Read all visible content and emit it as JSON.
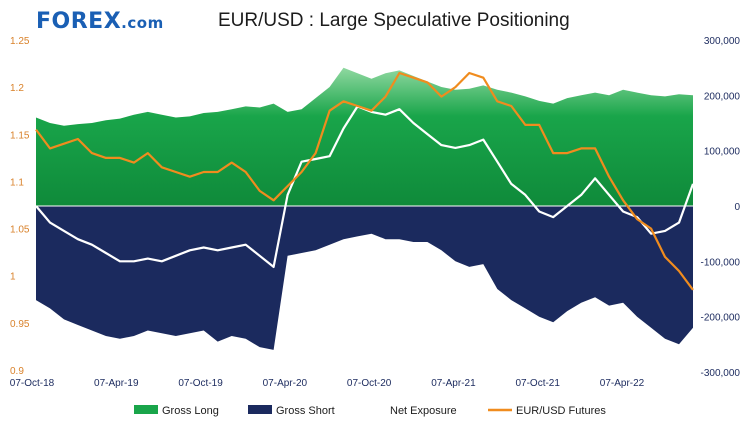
{
  "logo": {
    "text": "FOREX",
    "domain": ".com",
    "color": "#1a5fb4",
    "accent": "#2db34a"
  },
  "title": "EUR/USD : Large Speculative Positioning",
  "colors": {
    "gross_long": "#19a54a",
    "gross_short": "#1b2a5e",
    "net_exposure": "#ffffff",
    "futures": "#f08c1e",
    "left_axis": "#d9822b",
    "right_axis": "#1b2a5e"
  },
  "chart_data": {
    "type": "area",
    "title": "EUR/USD : Large Speculative Positioning",
    "x_ticks": [
      "07-Oct-18",
      "07-Apr-19",
      "07-Oct-19",
      "07-Apr-20",
      "07-Oct-20",
      "07-Apr-21",
      "07-Oct-21",
      "07-Apr-22"
    ],
    "x": [
      "2018-10",
      "2018-11",
      "2018-12",
      "2019-01",
      "2019-02",
      "2019-03",
      "2019-04",
      "2019-05",
      "2019-06",
      "2019-07",
      "2019-08",
      "2019-09",
      "2019-10",
      "2019-11",
      "2019-12",
      "2020-01",
      "2020-02",
      "2020-03",
      "2020-04",
      "2020-05",
      "2020-06",
      "2020-07",
      "2020-08",
      "2020-09",
      "2020-10",
      "2020-11",
      "2020-12",
      "2021-01",
      "2021-02",
      "2021-03",
      "2021-04",
      "2021-05",
      "2021-06",
      "2021-07",
      "2021-08",
      "2021-09",
      "2021-10",
      "2021-11",
      "2021-12",
      "2022-01",
      "2022-02",
      "2022-03",
      "2022-04",
      "2022-05",
      "2022-06",
      "2022-07",
      "2022-08",
      "2022-09"
    ],
    "y_left": {
      "ticks": [
        "1.25",
        "1.2",
        "1.15",
        "1.1",
        "1.05",
        "1",
        "0.95",
        "0.9"
      ],
      "range": [
        0.9,
        1.25
      ]
    },
    "y_right": {
      "ticks": [
        "300,000",
        "200,000",
        "100,000",
        "0",
        "-100,000",
        "-200,000",
        "-300,000"
      ],
      "range": [
        -300000,
        300000
      ]
    },
    "series": [
      {
        "name": "Gross Long",
        "axis": "right",
        "values": [
          160000,
          150000,
          145000,
          148000,
          150000,
          155000,
          158000,
          165000,
          170000,
          165000,
          160000,
          162000,
          168000,
          170000,
          175000,
          180000,
          178000,
          185000,
          170000,
          175000,
          195000,
          215000,
          250000,
          240000,
          230000,
          240000,
          245000,
          235000,
          225000,
          215000,
          210000,
          212000,
          218000,
          210000,
          205000,
          198000,
          190000,
          185000,
          195000,
          200000,
          205000,
          200000,
          210000,
          205000,
          200000,
          198000,
          202000,
          200000
        ]
      },
      {
        "name": "Gross Short",
        "axis": "right",
        "values": [
          -170000,
          -185000,
          -205000,
          -215000,
          -225000,
          -235000,
          -240000,
          -235000,
          -225000,
          -230000,
          -235000,
          -230000,
          -225000,
          -245000,
          -235000,
          -240000,
          -255000,
          -260000,
          -90000,
          -85000,
          -80000,
          -70000,
          -60000,
          -55000,
          -50000,
          -60000,
          -60000,
          -65000,
          -65000,
          -80000,
          -100000,
          -110000,
          -105000,
          -150000,
          -170000,
          -185000,
          -200000,
          -210000,
          -190000,
          -175000,
          -165000,
          -180000,
          -175000,
          -200000,
          -220000,
          -240000,
          -250000,
          -220000
        ]
      },
      {
        "name": "Net Exposure",
        "axis": "right",
        "values": [
          0,
          -30000,
          -45000,
          -60000,
          -70000,
          -85000,
          -100000,
          -100000,
          -95000,
          -100000,
          -90000,
          -80000,
          -75000,
          -80000,
          -75000,
          -70000,
          -90000,
          -110000,
          20000,
          80000,
          85000,
          90000,
          140000,
          180000,
          170000,
          165000,
          175000,
          150000,
          130000,
          110000,
          105000,
          110000,
          120000,
          80000,
          40000,
          20000,
          -10000,
          -20000,
          0,
          20000,
          50000,
          20000,
          -10000,
          -20000,
          -50000,
          -45000,
          -30000,
          40000
        ]
      },
      {
        "name": "EUR/USD Futures",
        "axis": "left",
        "values": [
          1.155,
          1.135,
          1.14,
          1.145,
          1.13,
          1.125,
          1.125,
          1.12,
          1.13,
          1.115,
          1.11,
          1.105,
          1.11,
          1.11,
          1.12,
          1.11,
          1.09,
          1.08,
          1.095,
          1.11,
          1.13,
          1.175,
          1.185,
          1.18,
          1.175,
          1.19,
          1.215,
          1.21,
          1.205,
          1.19,
          1.2,
          1.215,
          1.21,
          1.185,
          1.18,
          1.16,
          1.16,
          1.13,
          1.13,
          1.135,
          1.135,
          1.105,
          1.08,
          1.06,
          1.05,
          1.02,
          1.005,
          0.985
        ]
      }
    ],
    "legend": [
      "Gross Long",
      "Gross Short",
      "Net Exposure",
      "EUR/USD Futures"
    ],
    "legend_position": "bottom",
    "grid": false
  }
}
